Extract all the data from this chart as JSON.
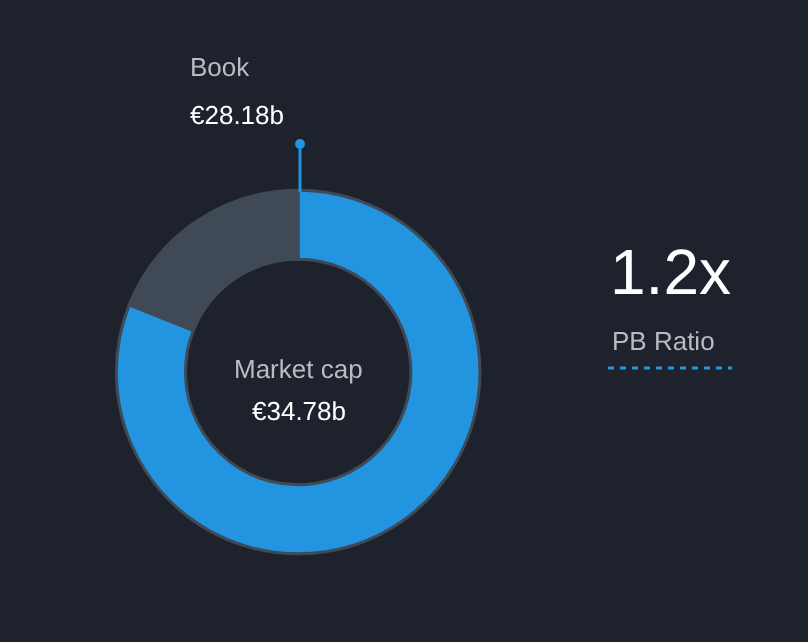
{
  "chart_data": {
    "type": "donut",
    "categories": [
      "Book",
      null
    ],
    "values": [
      28.18,
      6.6
    ],
    "colors": [
      "#2394df",
      "#3f4a56"
    ],
    "value_labels": [
      "€28.18b",
      null
    ],
    "annotations": [
      {
        "text": "Market cap"
      },
      {
        "text": "€34.78b"
      },
      {
        "text": "1.2x"
      },
      {
        "text": "PB Ratio"
      }
    ],
    "legend": false
  }
}
